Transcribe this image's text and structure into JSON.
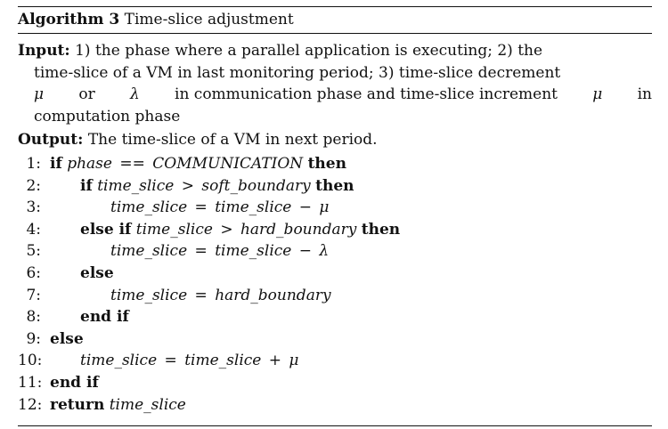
{
  "caption": {
    "label": "Algorithm 3",
    "title": "Time-slice adjustment"
  },
  "input": {
    "label": "Input:",
    "line1": "1) the phase where a parallel application is executing; 2) the",
    "line2": "time-slice of a VM in last monitoring period; 3) time-slice decrement",
    "line3_a": "μ",
    "line3_b": "or",
    "line3_c": "λ",
    "line3_d": "in communication phase and time-slice increment",
    "line3_e": "μ",
    "line3_f": "in",
    "line4": "computation phase"
  },
  "output": {
    "label": "Output:",
    "text": "The time-slice of a VM in next period."
  },
  "lines": [
    {
      "num": "1:",
      "kw1": "if",
      "var": "phase",
      "op": "==",
      "rhs": "COMMUNICATION",
      "kw2": "then"
    },
    {
      "num": "2:",
      "kw1": "if",
      "var": "time_slice",
      "op": ">",
      "rhs": "soft_boundary",
      "kw2": "then"
    },
    {
      "num": "3:",
      "var": "time_slice",
      "op": "=",
      "rhs": "time_slice",
      "op2": "−",
      "sym": "μ"
    },
    {
      "num": "4:",
      "kw1": "else if",
      "var": "time_slice",
      "op": ">",
      "rhs": "hard_boundary",
      "kw2": "then"
    },
    {
      "num": "5:",
      "var": "time_slice",
      "op": "=",
      "rhs": "time_slice",
      "op2": "−",
      "sym": "λ"
    },
    {
      "num": "6:",
      "kw1": "else"
    },
    {
      "num": "7:",
      "var": "time_slice",
      "op": "=",
      "rhs": "hard_boundary"
    },
    {
      "num": "8:",
      "kw1": "end if"
    },
    {
      "num": "9:",
      "kw1": "else"
    },
    {
      "num": "10:",
      "var": "time_slice",
      "op": "=",
      "rhs": "time_slice",
      "op2": "+",
      "sym": "μ"
    },
    {
      "num": "11:",
      "kw1": "end if"
    },
    {
      "num": "12:",
      "kw1": "return",
      "var": "time_slice"
    }
  ]
}
